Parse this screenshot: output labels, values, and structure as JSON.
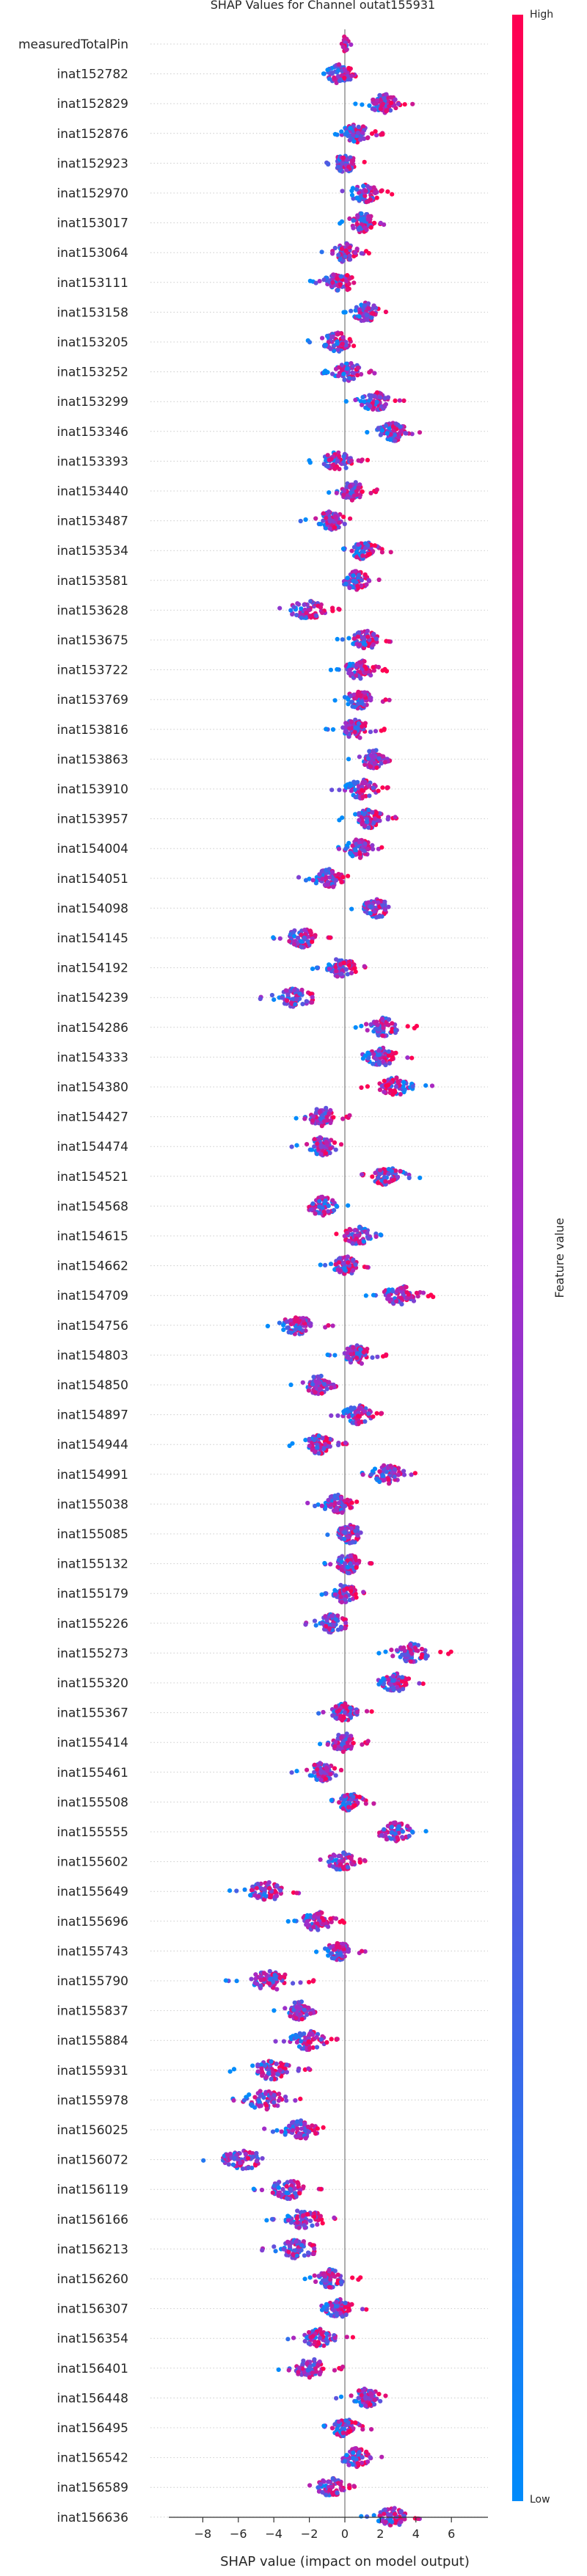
{
  "chart_data": {
    "type": "scatter",
    "subtype": "shap-beeswarm",
    "title": "SHAP Values for Channel outat155931",
    "xlabel": "SHAP value (impact on model output)",
    "xlim": [
      -8.6,
      6.3
    ],
    "xticks": [
      -8,
      -6,
      -4,
      -2,
      0,
      2,
      4,
      6
    ],
    "colorbar": {
      "label": "Feature value",
      "high": "High",
      "low": "Low",
      "high_color": "#ff0051",
      "low_color": "#008bfb"
    },
    "features": [
      {
        "name": "measuredTotalPin",
        "center": 0.0,
        "spread": 0.25,
        "trend": 0
      },
      {
        "name": "inat152782",
        "center": -0.3,
        "spread": 1.0,
        "trend": 0.6
      },
      {
        "name": "inat152829",
        "center": 2.2,
        "spread": 1.0,
        "trend": 0.6
      },
      {
        "name": "inat152876",
        "center": 0.6,
        "spread": 0.9,
        "trend": 0.5
      },
      {
        "name": "inat152923",
        "center": 0.0,
        "spread": 0.7,
        "trend": 0.5
      },
      {
        "name": "inat152970",
        "center": 1.1,
        "spread": 1.0,
        "trend": 0.6
      },
      {
        "name": "inat153017",
        "center": 1.0,
        "spread": 0.9,
        "trend": 0.5
      },
      {
        "name": "inat153064",
        "center": 0.0,
        "spread": 0.8,
        "trend": 0.4
      },
      {
        "name": "inat153111",
        "center": -0.3,
        "spread": 1.0,
        "trend": 0.5
      },
      {
        "name": "inat153158",
        "center": 1.2,
        "spread": 0.9,
        "trend": 0.6
      },
      {
        "name": "inat153205",
        "center": -0.4,
        "spread": 1.1,
        "trend": 0.5
      },
      {
        "name": "inat153252",
        "center": 0.2,
        "spread": 0.9,
        "trend": 0.5
      },
      {
        "name": "inat153299",
        "center": 1.7,
        "spread": 1.0,
        "trend": 0.6
      },
      {
        "name": "inat153346",
        "center": 2.8,
        "spread": 1.0,
        "trend": 0.5
      },
      {
        "name": "inat153393",
        "center": -0.4,
        "spread": 1.0,
        "trend": 0.5
      },
      {
        "name": "inat153440",
        "center": 0.4,
        "spread": 0.9,
        "trend": 0.5
      },
      {
        "name": "inat153487",
        "center": -0.8,
        "spread": 1.0,
        "trend": 0.5
      },
      {
        "name": "inat153534",
        "center": 1.1,
        "spread": 0.9,
        "trend": 0.5
      },
      {
        "name": "inat153581",
        "center": 0.6,
        "spread": 0.9,
        "trend": 0.5
      },
      {
        "name": "inat153628",
        "center": -2.1,
        "spread": 1.2,
        "trend": 0.6
      },
      {
        "name": "inat153675",
        "center": 1.1,
        "spread": 1.0,
        "trend": 0.5
      },
      {
        "name": "inat153722",
        "center": 0.8,
        "spread": 1.0,
        "trend": 0.5
      },
      {
        "name": "inat153769",
        "center": 0.9,
        "spread": 1.0,
        "trend": 0.5
      },
      {
        "name": "inat153816",
        "center": 0.6,
        "spread": 1.0,
        "trend": 0.5
      },
      {
        "name": "inat153863",
        "center": 1.7,
        "spread": 1.0,
        "trend": 0.5
      },
      {
        "name": "inat153910",
        "center": 0.9,
        "spread": 1.0,
        "trend": 0.5
      },
      {
        "name": "inat153957",
        "center": 1.3,
        "spread": 1.0,
        "trend": 0.5
      },
      {
        "name": "inat154004",
        "center": 0.8,
        "spread": 0.9,
        "trend": 0.5
      },
      {
        "name": "inat154051",
        "center": -0.9,
        "spread": 1.0,
        "trend": 0.5
      },
      {
        "name": "inat154098",
        "center": 1.8,
        "spread": 1.0,
        "trend": 0.5
      },
      {
        "name": "inat154145",
        "center": -2.4,
        "spread": 1.1,
        "trend": 0.5
      },
      {
        "name": "inat154192",
        "center": -0.2,
        "spread": 1.0,
        "trend": 0.5
      },
      {
        "name": "inat154239",
        "center": -2.8,
        "spread": 1.3,
        "trend": 0.5
      },
      {
        "name": "inat154286",
        "center": 2.2,
        "spread": 1.1,
        "trend": 0.5
      },
      {
        "name": "inat154333",
        "center": 2.0,
        "spread": 1.1,
        "trend": 0.5
      },
      {
        "name": "inat154380",
        "center": 2.9,
        "spread": 1.2,
        "trend": -0.4
      },
      {
        "name": "inat154427",
        "center": -1.3,
        "spread": 1.0,
        "trend": 0.4
      },
      {
        "name": "inat154474",
        "center": -1.3,
        "spread": 1.0,
        "trend": 0.4
      },
      {
        "name": "inat154521",
        "center": 2.4,
        "spread": 1.1,
        "trend": -0.3
      },
      {
        "name": "inat154568",
        "center": -1.3,
        "spread": 1.0,
        "trend": -0.4
      },
      {
        "name": "inat154615",
        "center": 0.7,
        "spread": 0.9,
        "trend": -0.4
      },
      {
        "name": "inat154662",
        "center": 0.0,
        "spread": 0.9,
        "trend": 0.4
      },
      {
        "name": "inat154709",
        "center": 3.1,
        "spread": 1.2,
        "trend": 0.3
      },
      {
        "name": "inat154756",
        "center": -2.6,
        "spread": 1.2,
        "trend": 0.4
      },
      {
        "name": "inat154803",
        "center": 0.7,
        "spread": 1.0,
        "trend": 0.4
      },
      {
        "name": "inat154850",
        "center": -1.4,
        "spread": 1.1,
        "trend": 0.4
      },
      {
        "name": "inat154897",
        "center": 0.7,
        "spread": 0.9,
        "trend": 0.4
      },
      {
        "name": "inat154944",
        "center": -1.5,
        "spread": 1.0,
        "trend": 0.4
      },
      {
        "name": "inat154991",
        "center": 2.4,
        "spread": 1.1,
        "trend": 0.4
      },
      {
        "name": "inat155038",
        "center": -0.4,
        "spread": 1.0,
        "trend": 0.4
      },
      {
        "name": "inat155085",
        "center": 0.3,
        "spread": 0.9,
        "trend": 0.4
      },
      {
        "name": "inat155132",
        "center": 0.2,
        "spread": 0.9,
        "trend": 0.4
      },
      {
        "name": "inat155179",
        "center": 0.0,
        "spread": 0.8,
        "trend": 0.4
      },
      {
        "name": "inat155226",
        "center": -0.7,
        "spread": 1.0,
        "trend": 0.4
      },
      {
        "name": "inat155273",
        "center": 3.8,
        "spread": 1.3,
        "trend": 0.4
      },
      {
        "name": "inat155320",
        "center": 2.8,
        "spread": 1.0,
        "trend": 0.4
      },
      {
        "name": "inat155367",
        "center": 0.0,
        "spread": 0.9,
        "trend": 0.4
      },
      {
        "name": "inat155414",
        "center": -0.1,
        "spread": 0.9,
        "trend": 0.4
      },
      {
        "name": "inat155461",
        "center": -1.3,
        "spread": 1.0,
        "trend": 0.4
      },
      {
        "name": "inat155508",
        "center": 0.3,
        "spread": 0.8,
        "trend": 0.4
      },
      {
        "name": "inat155555",
        "center": 2.8,
        "spread": 1.2,
        "trend": -0.3
      },
      {
        "name": "inat155602",
        "center": -0.2,
        "spread": 0.9,
        "trend": 0.4
      },
      {
        "name": "inat155649",
        "center": -4.5,
        "spread": 1.3,
        "trend": 0.4
      },
      {
        "name": "inat155696",
        "center": -1.6,
        "spread": 1.0,
        "trend": 0.4
      },
      {
        "name": "inat155743",
        "center": -0.3,
        "spread": 0.9,
        "trend": 0.4
      },
      {
        "name": "inat155790",
        "center": -4.2,
        "spread": 1.5,
        "trend": 0.4
      },
      {
        "name": "inat155837",
        "center": -2.5,
        "spread": 1.0,
        "trend": 0.4
      },
      {
        "name": "inat155884",
        "center": -2.1,
        "spread": 1.1,
        "trend": 0.4
      },
      {
        "name": "inat155931",
        "center": -4.2,
        "spread": 1.4,
        "trend": 0.4
      },
      {
        "name": "inat155978",
        "center": -4.5,
        "spread": 1.4,
        "trend": 0.4
      },
      {
        "name": "inat156025",
        "center": -2.5,
        "spread": 1.2,
        "trend": 0.4
      },
      {
        "name": "inat156072",
        "center": -5.7,
        "spread": 1.6,
        "trend": 0.4
      },
      {
        "name": "inat156119",
        "center": -3.2,
        "spread": 1.3,
        "trend": 0.4
      },
      {
        "name": "inat156166",
        "center": -2.3,
        "spread": 1.3,
        "trend": 0.4
      },
      {
        "name": "inat156213",
        "center": -2.7,
        "spread": 1.3,
        "trend": 0.4
      },
      {
        "name": "inat156260",
        "center": -0.8,
        "spread": 1.0,
        "trend": 0.4
      },
      {
        "name": "inat156307",
        "center": -0.4,
        "spread": 1.0,
        "trend": 0.4
      },
      {
        "name": "inat156354",
        "center": -1.4,
        "spread": 1.1,
        "trend": 0.4
      },
      {
        "name": "inat156401",
        "center": -2.0,
        "spread": 1.2,
        "trend": 0.4
      },
      {
        "name": "inat156448",
        "center": 1.2,
        "spread": 1.0,
        "trend": 0.4
      },
      {
        "name": "inat156495",
        "center": 0.0,
        "spread": 0.9,
        "trend": 0.4
      },
      {
        "name": "inat156542",
        "center": 0.6,
        "spread": 1.0,
        "trend": 0.4
      },
      {
        "name": "inat156589",
        "center": -0.8,
        "spread": 0.9,
        "trend": 0.4
      },
      {
        "name": "inat156636",
        "center": 2.6,
        "spread": 1.1,
        "trend": 0.4
      }
    ]
  }
}
